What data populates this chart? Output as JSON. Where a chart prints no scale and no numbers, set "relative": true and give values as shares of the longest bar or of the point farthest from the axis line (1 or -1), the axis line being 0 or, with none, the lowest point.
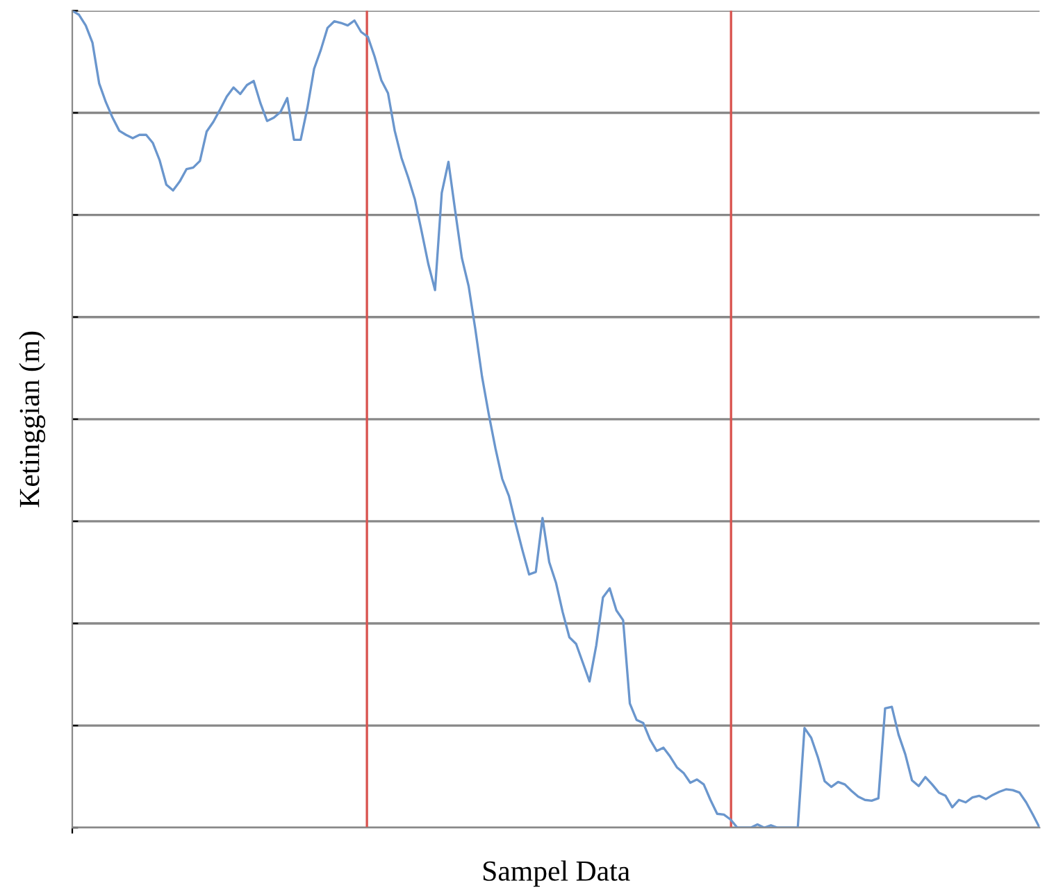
{
  "chart_data": {
    "type": "line",
    "relative": true,
    "xlabel": "Sampel Data",
    "ylabel": "Ketinggian (m)",
    "categories": [
      null,
      null,
      null,
      null,
      null,
      null,
      null,
      null,
      null,
      null,
      null,
      null,
      null,
      null,
      null,
      null,
      null,
      null,
      null,
      null,
      null,
      null,
      null,
      null,
      null,
      null,
      null,
      null,
      null,
      null,
      null,
      null,
      null,
      null,
      null,
      null,
      null,
      null,
      null,
      null,
      null,
      null,
      null,
      null,
      null,
      null,
      null,
      null,
      null,
      null,
      null,
      null,
      null,
      null,
      null,
      null,
      null,
      null,
      null,
      null,
      null,
      null,
      null,
      null,
      null,
      null,
      null,
      null,
      null,
      null,
      null,
      null,
      null,
      null,
      null,
      null,
      null,
      null,
      null,
      null,
      null,
      null,
      null,
      null,
      null,
      null,
      null,
      null,
      null,
      null,
      null,
      null,
      null,
      null,
      null,
      null,
      null,
      null,
      null,
      null,
      null,
      null,
      null,
      null,
      null,
      null,
      null,
      null,
      null,
      null,
      null,
      null,
      null,
      null,
      null,
      null,
      null,
      null,
      null,
      null,
      null,
      null,
      null,
      null,
      null,
      null,
      null,
      null,
      null,
      null,
      null,
      null,
      null,
      null,
      null,
      null,
      null,
      null,
      null,
      null,
      null,
      null,
      null,
      null,
      null
    ],
    "series": [
      {
        "color": "#6a96cd",
        "values": [
          1.0,
          0.995,
          0.982,
          0.961,
          0.911,
          0.888,
          0.869,
          0.853,
          0.848,
          0.844,
          0.848,
          0.848,
          0.838,
          0.817,
          0.787,
          0.78,
          0.791,
          0.806,
          0.808,
          0.816,
          0.852,
          0.864,
          0.879,
          0.895,
          0.906,
          0.898,
          0.909,
          0.914,
          0.887,
          0.865,
          0.869,
          0.876,
          0.893,
          0.842,
          0.842,
          0.881,
          0.929,
          0.952,
          0.979,
          0.987,
          0.985,
          0.982,
          0.988,
          0.974,
          0.968,
          0.944,
          0.915,
          0.899,
          0.853,
          0.82,
          0.796,
          0.769,
          0.73,
          0.69,
          0.658,
          0.777,
          0.815,
          0.755,
          0.697,
          0.663,
          0.61,
          0.552,
          0.506,
          0.464,
          0.427,
          0.406,
          0.372,
          0.34,
          0.31,
          0.313,
          0.379,
          0.325,
          0.3,
          0.264,
          0.233,
          0.225,
          0.202,
          0.179,
          0.223,
          0.282,
          0.293,
          0.266,
          0.254,
          0.152,
          0.132,
          0.128,
          0.108,
          0.094,
          0.098,
          0.087,
          0.074,
          0.067,
          0.055,
          0.059,
          0.053,
          0.034,
          0.017,
          0.016,
          0.01,
          0.0,
          0.0,
          0.0,
          0.004,
          0.0,
          0.003,
          0.0,
          0.0,
          0.0,
          0.0,
          0.122,
          0.11,
          0.086,
          0.057,
          0.05,
          0.056,
          0.053,
          0.045,
          0.038,
          0.034,
          0.033,
          0.036,
          0.146,
          0.148,
          0.114,
          0.09,
          0.058,
          0.051,
          0.062,
          0.053,
          0.043,
          0.039,
          0.025,
          0.034,
          0.031,
          0.037,
          0.039,
          0.035,
          0.04,
          0.044,
          0.047,
          0.046,
          0.043,
          0.031,
          0.016,
          0.0
        ]
      }
    ],
    "grid": "y",
    "tick_labels": false
  }
}
